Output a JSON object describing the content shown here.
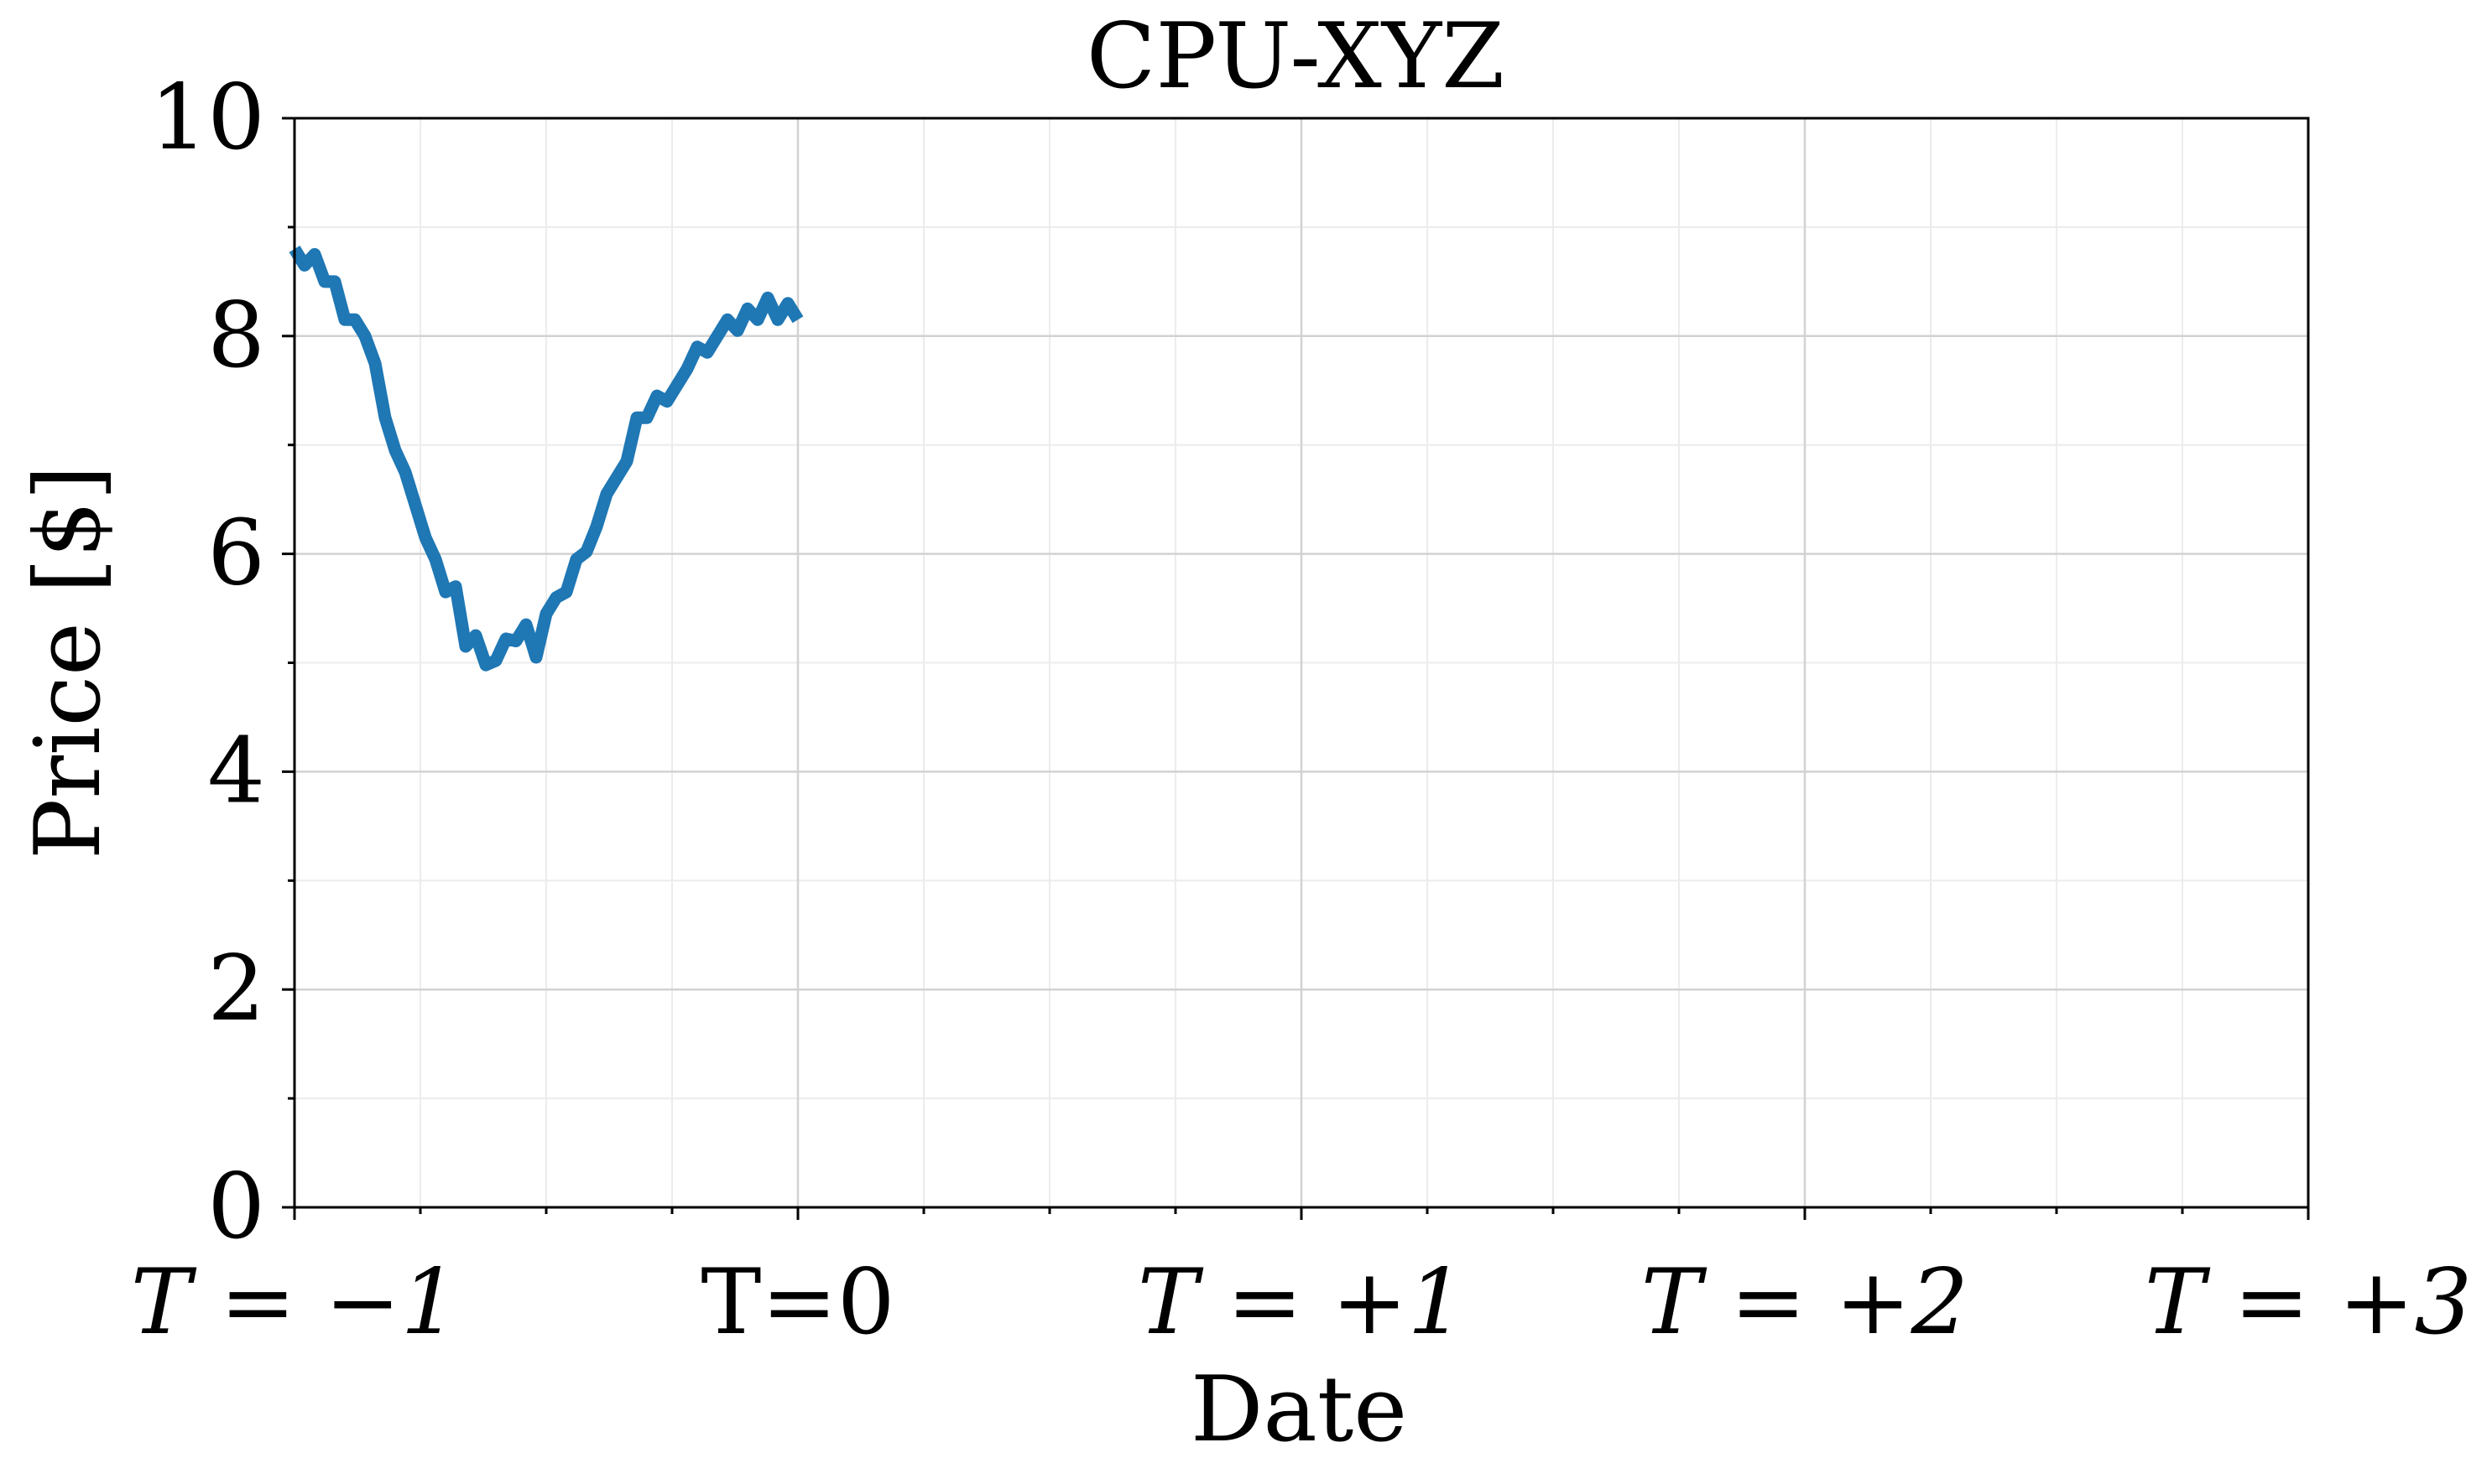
{
  "chart_data": {
    "type": "line",
    "title": "CPU-XYZ",
    "xlabel": "Date",
    "ylabel": "Price [$]",
    "xlim": [
      -1,
      3
    ],
    "ylim": [
      0,
      10
    ],
    "grid": true,
    "x_ticks": [
      {
        "value": -1,
        "label": "T = −1",
        "math": true
      },
      {
        "value": 0,
        "label": "T=0",
        "math": false
      },
      {
        "value": 1,
        "label": "T = +1",
        "math": true
      },
      {
        "value": 2,
        "label": "T = +2",
        "math": true
      },
      {
        "value": 3,
        "label": "T = +3",
        "math": true
      }
    ],
    "y_ticks": [
      0,
      2,
      4,
      6,
      8,
      10
    ],
    "series": [
      {
        "color": "#1f77b4",
        "x": [
          -1.0,
          -0.98,
          -0.96,
          -0.94,
          -0.92,
          -0.9,
          -0.88,
          -0.86,
          -0.84,
          -0.82,
          -0.8,
          -0.78,
          -0.76,
          -0.74,
          -0.72,
          -0.7,
          -0.68,
          -0.66,
          -0.64,
          -0.62,
          -0.6,
          -0.58,
          -0.56,
          -0.54,
          -0.52,
          -0.5,
          -0.48,
          -0.46,
          -0.44,
          -0.42,
          -0.4,
          -0.38,
          -0.36,
          -0.34,
          -0.32,
          -0.3,
          -0.28,
          -0.26,
          -0.24,
          -0.22,
          -0.2,
          -0.18,
          -0.16,
          -0.14,
          -0.12,
          -0.1,
          -0.08,
          -0.06,
          -0.04,
          -0.02,
          0.0
        ],
        "values": [
          8.8,
          8.65,
          8.75,
          8.5,
          8.5,
          8.15,
          8.15,
          8.0,
          7.75,
          7.25,
          6.95,
          6.75,
          6.45,
          6.15,
          5.95,
          5.65,
          5.7,
          5.15,
          5.25,
          4.98,
          5.02,
          5.22,
          5.2,
          5.35,
          5.05,
          5.45,
          5.6,
          5.65,
          5.95,
          6.02,
          6.25,
          6.55,
          6.7,
          6.85,
          7.25,
          7.25,
          7.45,
          7.4,
          7.55,
          7.7,
          7.9,
          7.85,
          8.0,
          8.15,
          8.05,
          8.25,
          8.15,
          8.35,
          8.15,
          8.3,
          8.15
        ]
      }
    ]
  }
}
